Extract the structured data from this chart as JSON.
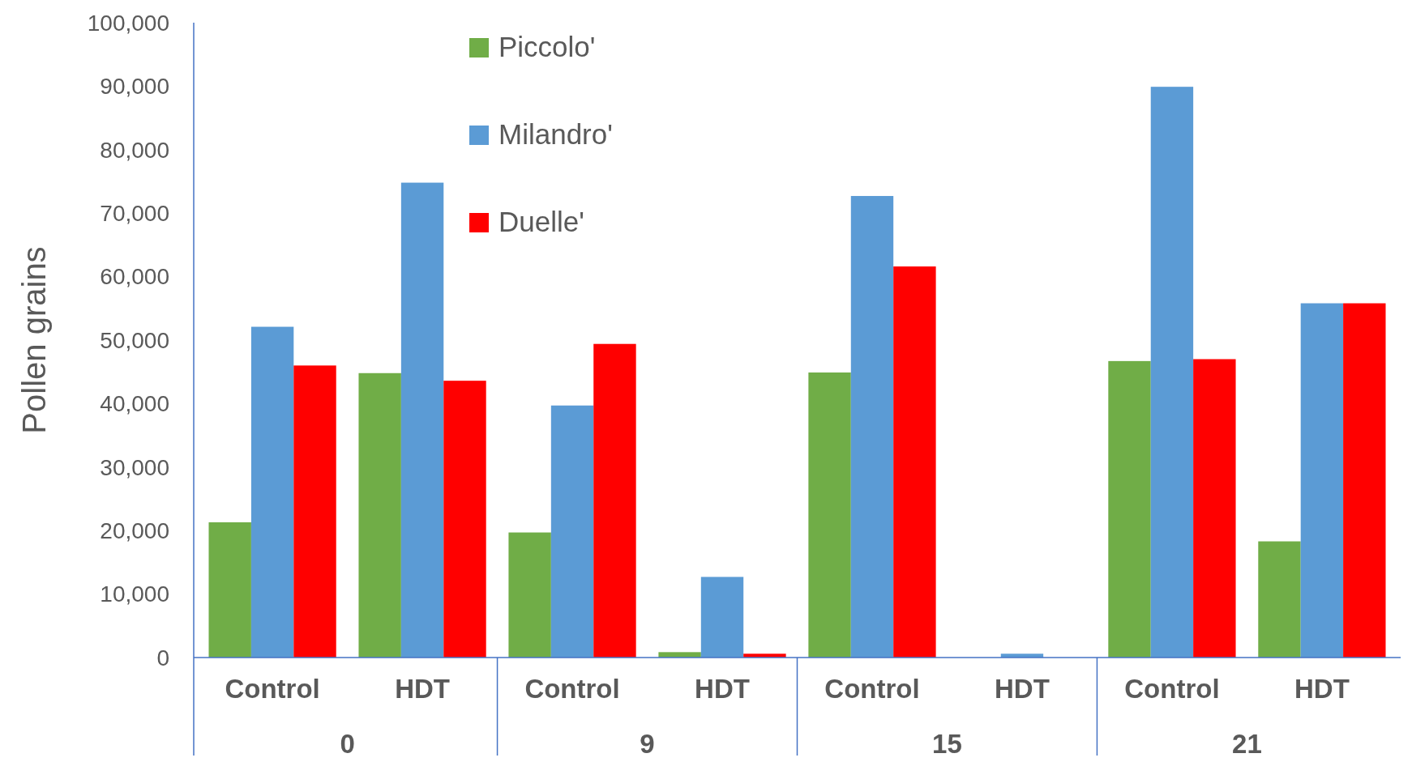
{
  "chart_data": {
    "type": "bar",
    "ylabel": "Pollen grains",
    "categories": [
      "Control",
      "HDT",
      "Control",
      "HDT",
      "Control",
      "HDT",
      "Control",
      "HDT"
    ],
    "annotations": [
      "0",
      "9",
      "15",
      "21"
    ],
    "series": [
      {
        "name": "Piccolo'",
        "color": "#70ad47",
        "values": [
          21300,
          44800,
          19700,
          850,
          44900,
          0,
          46700,
          18300
        ]
      },
      {
        "name": "Milandro'",
        "color": "#5b9bd5",
        "values": [
          52100,
          74800,
          39700,
          12700,
          72700,
          600,
          89900,
          55800
        ]
      },
      {
        "name": "Duelle'",
        "color": "#ff0000",
        "values": [
          46000,
          43600,
          49400,
          600,
          61600,
          0,
          47000,
          55800
        ]
      }
    ],
    "ylim": [
      0,
      100000
    ],
    "yticks": [
      {
        "value": 0,
        "label": "0"
      },
      {
        "value": 10000,
        "label": "10,000"
      },
      {
        "value": 20000,
        "label": "20,000"
      },
      {
        "value": 30000,
        "label": "30,000"
      },
      {
        "value": 40000,
        "label": "40,000"
      },
      {
        "value": 50000,
        "label": "50,000"
      },
      {
        "value": 60000,
        "label": "60,000"
      },
      {
        "value": 70000,
        "label": "70,000"
      },
      {
        "value": 80000,
        "label": "80,000"
      },
      {
        "value": 90000,
        "label": "90,000"
      },
      {
        "value": 100000,
        "label": "100,000"
      }
    ],
    "grid": false,
    "legend": "top left"
  }
}
